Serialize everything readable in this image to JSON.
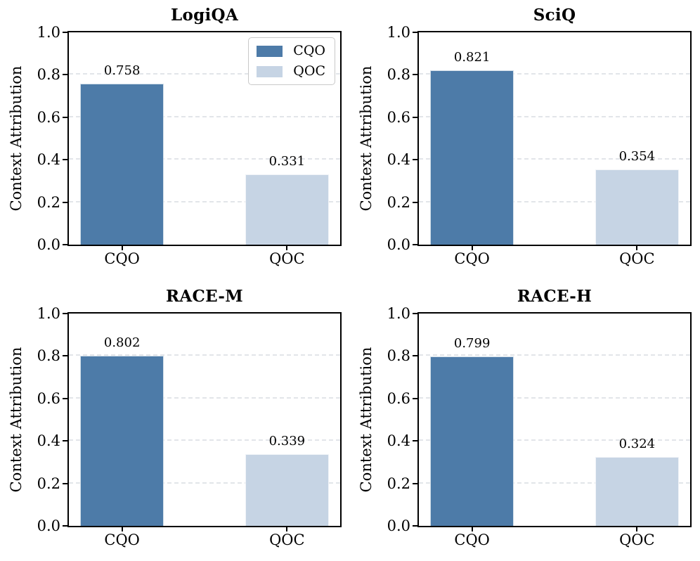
{
  "axis": {
    "ylabel": "Context Attribution",
    "ylim": [
      0,
      1
    ],
    "yticks": [
      {
        "label": "1.0",
        "value": 1.0
      },
      {
        "label": "0.8",
        "value": 0.8
      },
      {
        "label": "0.6",
        "value": 0.6
      },
      {
        "label": "0.4",
        "value": 0.4
      },
      {
        "label": "0.2",
        "value": 0.2
      },
      {
        "label": "0.0",
        "value": 0.0
      }
    ]
  },
  "legend": {
    "position": "upper right",
    "items": [
      {
        "label": "CQO",
        "color": "#4D7BA8"
      },
      {
        "label": "QOC",
        "color": "#C6D4E4"
      }
    ]
  },
  "style": {
    "series_colors": [
      "#4D7BA8",
      "#C6D4E4"
    ],
    "grid_color": "#e2e5e9",
    "frame_color": "#000000"
  },
  "chart_data": [
    {
      "type": "bar",
      "title": "LogiQA",
      "ylabel": "Context Attribution",
      "categories": [
        "CQO",
        "QOC"
      ],
      "values": [
        0.758,
        0.331
      ],
      "bar_labels": [
        "0.758",
        "0.331"
      ],
      "ylim": [
        0,
        1
      ],
      "grid": "horizontal-dashed",
      "legend": "upper right"
    },
    {
      "type": "bar",
      "title": "SciQ",
      "ylabel": "Context Attribution",
      "categories": [
        "CQO",
        "QOC"
      ],
      "values": [
        0.821,
        0.354
      ],
      "bar_labels": [
        "0.821",
        "0.354"
      ],
      "ylim": [
        0,
        1
      ],
      "grid": "horizontal-dashed",
      "legend": null
    },
    {
      "type": "bar",
      "title": "RACE-M",
      "ylabel": "Context Attribution",
      "categories": [
        "CQO",
        "QOC"
      ],
      "values": [
        0.802,
        0.339
      ],
      "bar_labels": [
        "0.802",
        "0.339"
      ],
      "ylim": [
        0,
        1
      ],
      "grid": "horizontal-dashed",
      "legend": null
    },
    {
      "type": "bar",
      "title": "RACE-H",
      "ylabel": "Context Attribution",
      "categories": [
        "CQO",
        "QOC"
      ],
      "values": [
        0.799,
        0.324
      ],
      "bar_labels": [
        "0.799",
        "0.324"
      ],
      "ylim": [
        0,
        1
      ],
      "grid": "horizontal-dashed",
      "legend": null
    }
  ]
}
